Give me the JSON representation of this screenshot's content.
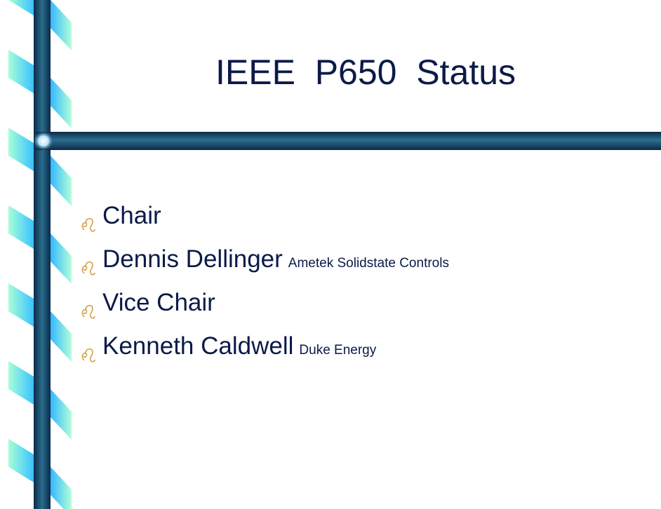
{
  "title": "IEEE  P650  Status",
  "bullets": [
    {
      "text": "Chair"
    },
    {
      "text": "Dennis Dellinger",
      "note": "Ametek Solidstate Controls"
    },
    {
      "text": "Vice Chair"
    },
    {
      "text": "Kenneth Caldwell",
      "note": "Duke Energy"
    }
  ]
}
